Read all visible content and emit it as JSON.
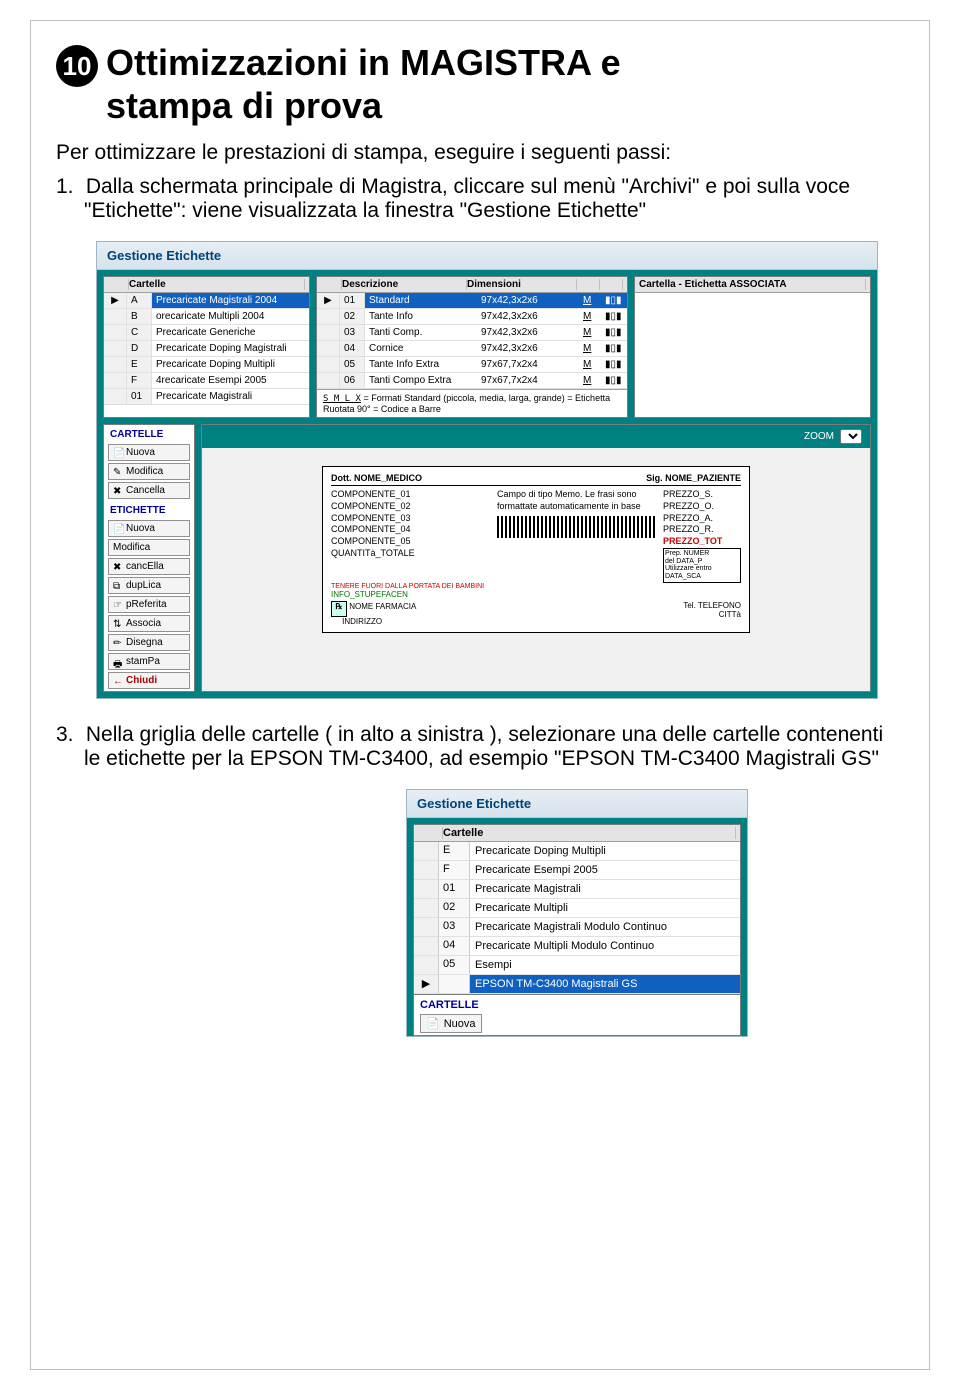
{
  "header": {
    "number": "10",
    "title_line1": "Ottimizzazioni in MAGISTRA e",
    "title_line2": "stampa di prova"
  },
  "intro_text": "Per ottimizzare le prestazioni di stampa, eseguire i seguenti passi:",
  "step1": {
    "num": "1.",
    "text": "Dalla schermata principale di Magistra, cliccare sul menù \"Archivi\" e poi sulla voce \"Etichette\": viene visualizzata la finestra \"Gestione Etichette\""
  },
  "step3": {
    "num": "3.",
    "text": "Nella griglia delle cartelle ( in alto a sinistra ), selezionare una delle cartelle contenenti le etichette per la EPSON TM-C3400, ad esempio \"EPSON TM-C3400 Magistrali GS\""
  },
  "win1": {
    "title": "Gestione Etichette",
    "cartelle_header": "Cartelle",
    "cartelle_rows": [
      {
        "k": "A",
        "v": "Precaricate Magistrali 2004",
        "sel": true
      },
      {
        "k": "B",
        "v": "orecaricate Multipli 2004"
      },
      {
        "k": "C",
        "v": "Precaricate Generiche"
      },
      {
        "k": "D",
        "v": "Precaricate Doping Magistrali"
      },
      {
        "k": "E",
        "v": "Precaricate Doping Multipli"
      },
      {
        "k": "F",
        "v": "4recaricate Esempi 2005"
      },
      {
        "k": "01",
        "v": "Precaricate Magistrali"
      }
    ],
    "desc_header1": "Descrizione",
    "desc_header2": "Dimensioni",
    "desc_rows": [
      {
        "n": "01",
        "d": "Standard",
        "dim": "97x42,3x2x6",
        "sel": true
      },
      {
        "n": "02",
        "d": "Tante Info",
        "dim": "97x42,3x2x6"
      },
      {
        "n": "03",
        "d": "Tanti Comp.",
        "dim": "97x42,3x2x6"
      },
      {
        "n": "04",
        "d": "Cornice",
        "dim": "97x42,3x2x6"
      },
      {
        "n": "05",
        "d": "Tante Info Extra",
        "dim": "97x67,7x2x4"
      },
      {
        "n": "06",
        "d": "Tanti Compo Extra",
        "dim": "97x67,7x2x4"
      }
    ],
    "assoc_header": "Cartella - Etichetta ASSOCIATA",
    "formats_note": "= Formati Standard (piccola, media, larga, grande)   = Etichetta Ruotata 90°   = Codice a Barre",
    "zoom_label": "ZOOM",
    "side": {
      "cartelle_label": "CARTELLE",
      "etichette_label": "ETICHETTE",
      "btn_nuova": "Nuova",
      "btn_modifica": "Modifica",
      "btn_cancella": "Cancella",
      "btn_nuova2": "Nuova",
      "btn_modifica2": "Modifica",
      "btn_cancella2": "cancElla",
      "btn_duplica": "dupLica",
      "btn_preferita": "pReferita",
      "btn_associa": "Associa",
      "btn_disegna": "Disegna",
      "btn_stampa": "stamPa",
      "btn_chiudi": "Chiudi"
    },
    "preview": {
      "dott": "Dott. NOME_MEDICO",
      "sig": "Sig. NOME_PAZIENTE",
      "left_lines": [
        "COMPONENTE_01",
        "COMPONENTE_02",
        "COMPONENTE_03",
        "COMPONENTE_04",
        "COMPONENTE_05",
        "QUANTITà_TOTALE"
      ],
      "mid_text": "Campo di tipo Memo. Le frasi sono formattate automaticamente in base",
      "right_lines": [
        "PREZZO_S.",
        "PREZZO_O.",
        "PREZZO_A.",
        "PREZZO_R."
      ],
      "right_red": "PREZZO_TOT",
      "right_box": [
        "Prep. NUMER",
        "del   DATA_P",
        "Utilizzare entro",
        "DATA_SCA"
      ],
      "redline": "TENERE FUORI DALLA PORTATA DEI BAMBINI",
      "info": "INFO_STUPEFACEN",
      "farmacia": "NOME FARMACIA",
      "indirizzo": "INDIRIZZO",
      "tel": "Tel. TELEFONO",
      "citta": "CITTà"
    }
  },
  "win2": {
    "title": "Gestione Etichette",
    "header": "Cartelle",
    "rows": [
      {
        "k": "E",
        "v": "Precaricate Doping Multipli"
      },
      {
        "k": "F",
        "v": "Precaricate Esempi 2005"
      },
      {
        "k": "01",
        "v": "Precaricate Magistrali"
      },
      {
        "k": "02",
        "v": "Precaricate Multipli"
      },
      {
        "k": "03",
        "v": "Precaricate Magistrali Modulo Continuo"
      },
      {
        "k": "04",
        "v": "Precaricate Multipli Modulo Continuo"
      },
      {
        "k": "05",
        "v": "Esempi"
      },
      {
        "k": "",
        "v": "EPSON TM-C3400 Magistrali GS",
        "sel": true
      }
    ],
    "cartelle_label": "CARTELLE",
    "btn_nuova": "Nuova"
  }
}
